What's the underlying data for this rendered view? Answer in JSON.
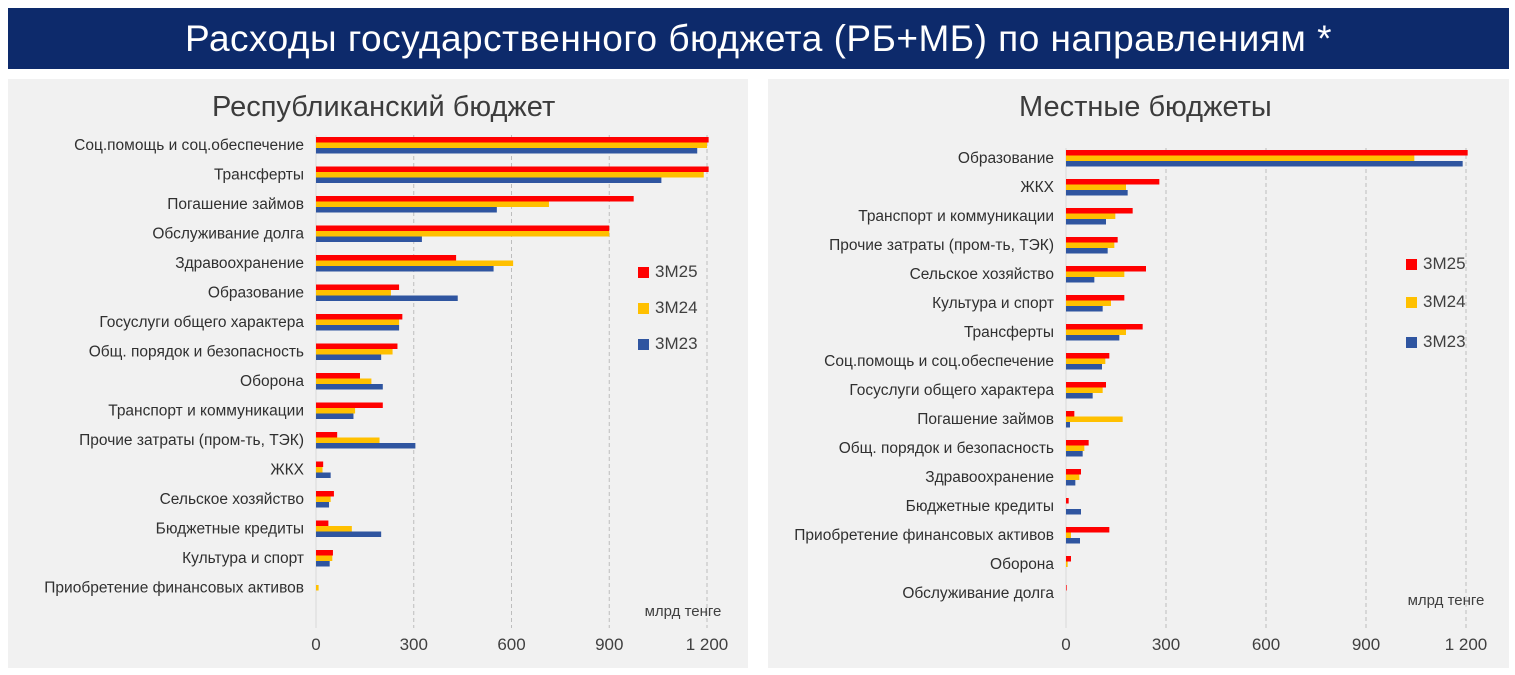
{
  "header": {
    "title": "Расходы государственного бюджета (РБ+МБ) по направлениям *"
  },
  "colors": {
    "banner": "#0d2a6b",
    "3M25": "#ff0000",
    "3M24": "#ffc000",
    "3M23": "#2f55a0"
  },
  "chart_data": [
    {
      "type": "bar",
      "orientation": "horizontal",
      "title": "Республиканский бюджет",
      "xlabel": "млрд тенге",
      "xlim": [
        0,
        1200
      ],
      "xticks": [
        0,
        300,
        600,
        900,
        1200
      ],
      "xtick_labels": [
        "0",
        "300",
        "600",
        "900",
        "1 200"
      ],
      "legend_position": "right",
      "categories": [
        "Соц.помощь и соц.обеспечение",
        "Трансферты",
        "Погашение займов",
        "Обслуживание долга",
        "Здравоохранение",
        "Образование",
        "Госуслуги общего характера",
        "Общ. порядок и безопасность",
        "Оборона",
        "Транспорт и коммуникации",
        "Прочие затраты (пром-ть, ТЭК)",
        "ЖКХ",
        "Сельское хозяйство",
        "Бюджетные кредиты",
        "Культура и спорт",
        "Приобретение финансовых активов"
      ],
      "series": [
        {
          "name": "3М25",
          "values": [
            1205,
            1205,
            975,
            900,
            430,
            255,
            265,
            250,
            135,
            205,
            65,
            22,
            55,
            38,
            52,
            0
          ]
        },
        {
          "name": "3М24",
          "values": [
            1200,
            1190,
            715,
            900,
            605,
            230,
            255,
            235,
            170,
            120,
            195,
            20,
            45,
            110,
            50,
            8
          ]
        },
        {
          "name": "3М23",
          "values": [
            1170,
            1060,
            555,
            325,
            545,
            435,
            255,
            200,
            205,
            115,
            305,
            45,
            40,
            200,
            42,
            0
          ]
        }
      ]
    },
    {
      "type": "bar",
      "orientation": "horizontal",
      "title": "Местные бюджеты",
      "xlabel": "млрд тенге",
      "xlim": [
        0,
        1200
      ],
      "xticks": [
        0,
        300,
        600,
        900,
        1200
      ],
      "xtick_labels": [
        "0",
        "300",
        "600",
        "900",
        "1 200"
      ],
      "legend_position": "right",
      "categories": [
        "Образование",
        "ЖКХ",
        "Транспорт и коммуникации",
        "Прочие затраты (пром-ть, ТЭК)",
        "Сельское хозяйство",
        "Культура и спорт",
        "Трансферты",
        "Соц.помощь и соц.обеспечение",
        "Госуслуги общего характера",
        "Погашение займов",
        "Общ. порядок и безопасность",
        "Здравоохранение",
        "Бюджетные кредиты",
        "Приобретение финансовых активов",
        "Оборона",
        "Обслуживание долга"
      ],
      "series": [
        {
          "name": "3М25",
          "values": [
            1205,
            280,
            200,
            155,
            240,
            175,
            230,
            130,
            120,
            25,
            68,
            45,
            8,
            130,
            15,
            2
          ]
        },
        {
          "name": "3М24",
          "values": [
            1045,
            180,
            148,
            145,
            175,
            135,
            180,
            118,
            110,
            170,
            55,
            40,
            0,
            15,
            5,
            0
          ]
        },
        {
          "name": "3М23",
          "values": [
            1190,
            185,
            120,
            125,
            85,
            110,
            160,
            108,
            80,
            12,
            50,
            28,
            45,
            42,
            0,
            0
          ]
        }
      ]
    }
  ]
}
